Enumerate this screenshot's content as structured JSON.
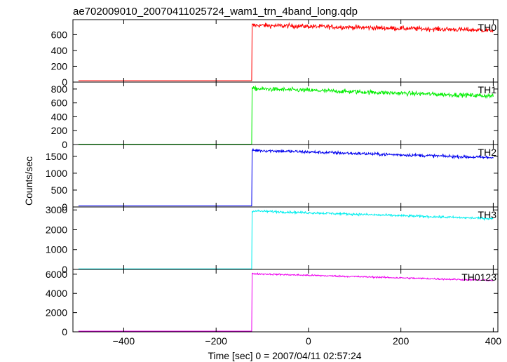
{
  "chart_data": {
    "type": "line",
    "title": "ae702009010_20070411025724_wam1_trn_4band_long.qdp",
    "xlabel": "Time [sec] 0 = 2007/04/11 02:57:24",
    "ylabel": "Counts/sec",
    "xlim": [
      -510,
      410
    ],
    "x_ticks": [
      -400,
      -200,
      0,
      200,
      400
    ],
    "x_tick_labels": [
      "−400",
      "−200",
      "0",
      "200",
      "400"
    ],
    "step_time": -122,
    "panels": [
      {
        "name": "TH0",
        "color": "#ff0000",
        "ylim": [
          0,
          790
        ],
        "y_ticks": [
          0,
          200,
          400,
          600
        ],
        "pre_level": 18,
        "post_start": 720,
        "post_end": 655,
        "noise": 28
      },
      {
        "name": "TH1",
        "color": "#00ee00",
        "ylim": [
          0,
          900
        ],
        "y_ticks": [
          0,
          200,
          400,
          600,
          800
        ],
        "pre_level": 5,
        "post_start": 805,
        "post_end": 700,
        "noise": 30
      },
      {
        "name": "TH2",
        "color": "#0000ee",
        "ylim": [
          0,
          1850
        ],
        "y_ticks": [
          0,
          500,
          1000,
          1500
        ],
        "pre_level": 30,
        "post_start": 1680,
        "post_end": 1460,
        "noise": 45
      },
      {
        "name": "TH3",
        "color": "#00eeee",
        "ylim": [
          0,
          3150
        ],
        "y_ticks": [
          0,
          1000,
          2000,
          3000
        ],
        "pre_level": 25,
        "post_start": 2950,
        "post_end": 2560,
        "noise": 55
      },
      {
        "name": "TH0123",
        "color": "#ee00ee",
        "ylim": [
          0,
          6500
        ],
        "y_ticks": [
          0,
          2000,
          4000,
          6000
        ],
        "pre_level": 70,
        "post_start": 6050,
        "post_end": 5350,
        "noise": 80
      }
    ]
  }
}
